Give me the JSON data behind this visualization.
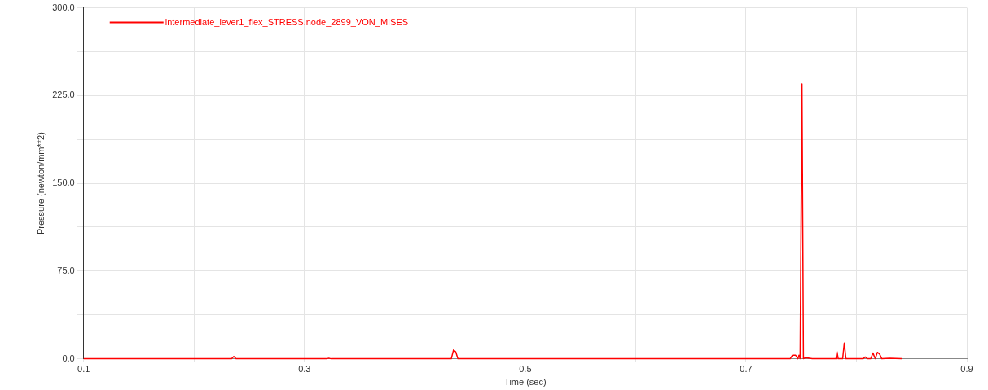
{
  "chart_data": {
    "type": "line",
    "xlabel": "Time (sec)",
    "ylabel": "Pressure (newton/mm**2)",
    "x": [
      0.1,
      0.234,
      0.236,
      0.238,
      0.3,
      0.32,
      0.322,
      0.324,
      0.433,
      0.435,
      0.437,
      0.439,
      0.6,
      0.74,
      0.742,
      0.745,
      0.747,
      0.748,
      0.749,
      0.7507,
      0.752,
      0.754,
      0.76,
      0.78,
      0.7815,
      0.7824,
      0.7835,
      0.7875,
      0.789,
      0.7905,
      0.8,
      0.806,
      0.808,
      0.81,
      0.813,
      0.815,
      0.817,
      0.819,
      0.821,
      0.823,
      0.83,
      0.841
    ],
    "series": [
      {
        "name": "intermediate_lever1_flex_STRESS.node_2899_VON_MISES",
        "color": "#ff0000",
        "values": [
          0,
          0,
          2,
          0,
          0,
          0,
          0.5,
          0,
          0,
          7.5,
          6,
          0,
          0,
          0,
          3,
          3,
          0,
          3,
          0,
          235,
          0,
          1,
          0,
          0,
          0,
          6,
          0,
          0,
          13.5,
          0,
          0,
          0,
          1.5,
          0,
          0,
          5,
          0,
          5.5,
          4,
          0,
          0.5,
          0
        ]
      }
    ],
    "xlim": [
      0.1,
      0.9
    ],
    "xticks": [
      0.1,
      {
        "value": 0.2,
        "label": null
      },
      0.3,
      {
        "value": 0.4,
        "label": null
      },
      0.5,
      {
        "value": 0.6,
        "label": null
      },
      0.7,
      {
        "value": 0.8,
        "label": null
      },
      0.9
    ],
    "ylim": [
      0,
      300
    ],
    "yticks": [
      {
        "value": 0,
        "label": "0.0"
      },
      {
        "value": 37.5,
        "label": null
      },
      {
        "value": 75,
        "label": "75.0"
      },
      {
        "value": 112.5,
        "label": null
      },
      {
        "value": 150,
        "label": "150.0"
      },
      {
        "value": 187.5,
        "label": null
      },
      {
        "value": 225,
        "label": "225.0"
      },
      {
        "value": 262.5,
        "label": null
      },
      {
        "value": 300,
        "label": "300.0"
      }
    ],
    "grid": true,
    "legend": "top left",
    "marker": "none",
    "line_style": "solid"
  }
}
